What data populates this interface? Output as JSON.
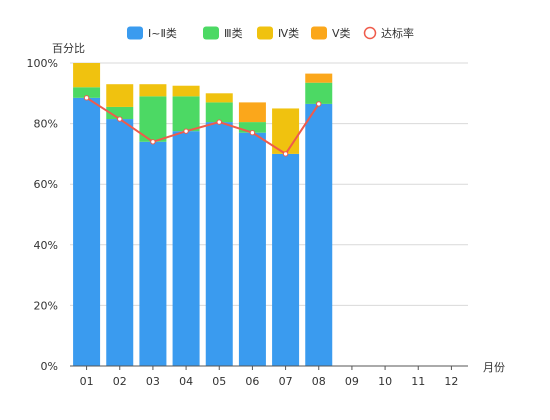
{
  "chart_data": {
    "type": "bar",
    "stacked": true,
    "categories": [
      "01",
      "02",
      "03",
      "04",
      "05",
      "06",
      "07",
      "08",
      "09",
      "10",
      "11",
      "12"
    ],
    "series": [
      {
        "name": "Ⅰ~Ⅱ类",
        "color": "#3a9bef",
        "values": [
          88.5,
          81.5,
          74,
          77.5,
          80.5,
          77,
          70,
          86.5,
          null,
          null,
          null,
          null
        ]
      },
      {
        "name": "Ⅲ类",
        "color": "#4cd964",
        "values": [
          3.5,
          4,
          15,
          11.5,
          6.5,
          3.5,
          0,
          7,
          null,
          null,
          null,
          null
        ]
      },
      {
        "name": "Ⅳ类",
        "color": "#f0c20f",
        "values": [
          8,
          7.5,
          4,
          3.5,
          3,
          0,
          15,
          0,
          null,
          null,
          null,
          null
        ]
      },
      {
        "name": "Ⅴ类",
        "color": "#fba71b",
        "values": [
          0,
          0,
          0,
          0,
          0,
          6.5,
          0,
          3,
          null,
          null,
          null,
          null
        ]
      }
    ],
    "line": {
      "name": "达标率",
      "color": "#ef5b4b",
      "values": [
        88.5,
        81.5,
        74,
        77.5,
        80.5,
        77,
        70,
        86.5,
        null,
        null,
        null,
        null
      ]
    },
    "ylabel": "百分比",
    "xlabel": "月份",
    "ylim": [
      0,
      100
    ],
    "yticks": [
      "0%",
      "20%",
      "40%",
      "60%",
      "80%",
      "100%"
    ],
    "legend_position": "top-center",
    "grid": true
  }
}
